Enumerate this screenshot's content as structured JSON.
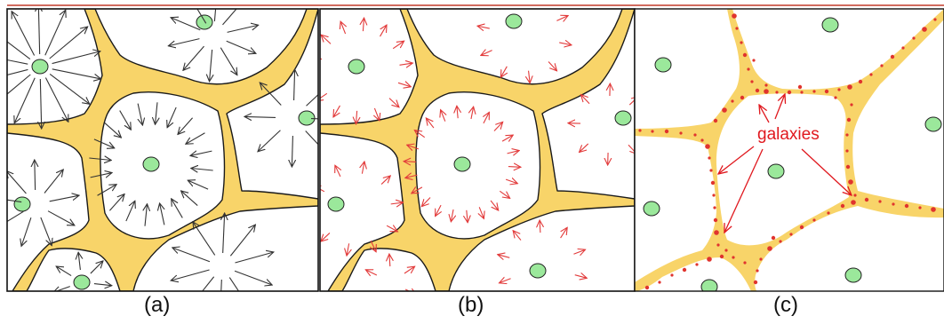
{
  "panels": [
    {
      "caption": "(a)"
    },
    {
      "caption": "(b)"
    },
    {
      "caption": "(c)",
      "annotation": "galaxies"
    }
  ],
  "colors": {
    "filament": "#f8d469",
    "filament_edge": "#1a1a1a",
    "void_center": "#9be89b",
    "arrow_a": "#333333",
    "arrow_b": "#e23a3a",
    "galaxy_dot": "#e0342e",
    "annotation": "#e0181e"
  }
}
